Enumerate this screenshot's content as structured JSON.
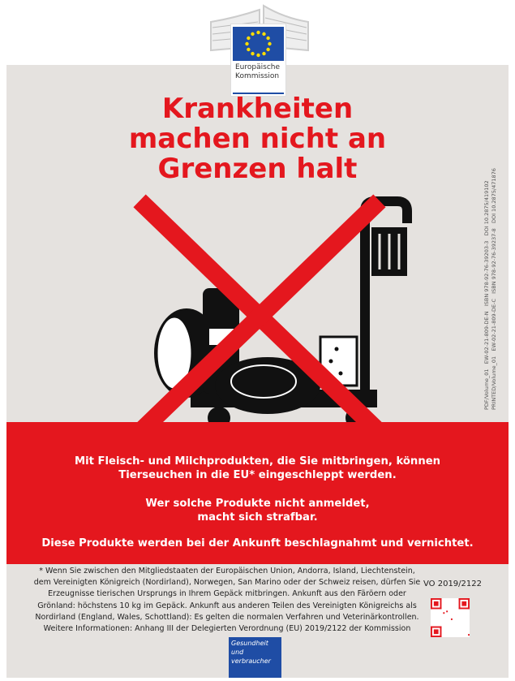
{
  "logo": {
    "line1": "Europäische",
    "line2": "Kommission"
  },
  "headline": [
    "Krankheiten",
    "machen nicht an",
    "Grenzen halt"
  ],
  "side_codes": {
    "line1": "PDF/Volume_01   EW-02-21-809-DE-N   ISBN 978-92-76-39203-3   DOI 10.2875/419102",
    "line2": "PRINTED/Volume_01   EW-02-21-809-DE-C   ISBN 978-92-76-39237-8   DOI 10.2875/471876"
  },
  "band": {
    "p1": "Mit Fleisch- und Milchprodukten, die Sie mitbringen, können Tierseuchen in die EU* eingeschleppt werden.",
    "p2a": "Wer solche Produkte nicht anmeldet,",
    "p2b": "macht sich strafbar.",
    "p3": "Diese Produkte werden bei der Ankunft beschlagnahmt und vernichtet."
  },
  "footnote": "* Wenn Sie zwischen den Mitgliedstaaten der Europäischen Union, Andorra, Island, Liechtenstein, dem Vereinigten Königreich (Nordirland), Norwegen, San Marino oder der Schweiz reisen, dürfen Sie Erzeugnisse tierischen Ursprungs in Ihrem Gepäck mitbringen. Ankunft aus den Färöern oder Grönland: höchstens 10 kg im Gepäck. Ankunft aus anderen Teilen des Vereinigten Königreichs als Nordirland (England, Wales, Schottland): Es gelten die normalen Verfahren und Veterinärkontrollen.",
  "more_info": "Weitere Informationen: Anhang III der Delegierten Verordnung (EU) 2019/2122 der Kommission",
  "regulation": "VO 2019/2122",
  "dg_label": "Gesundheit und verbraucher",
  "colors": {
    "red": "#e4171e",
    "eu_blue": "#1f4da5",
    "panel": "#e5e2df"
  }
}
